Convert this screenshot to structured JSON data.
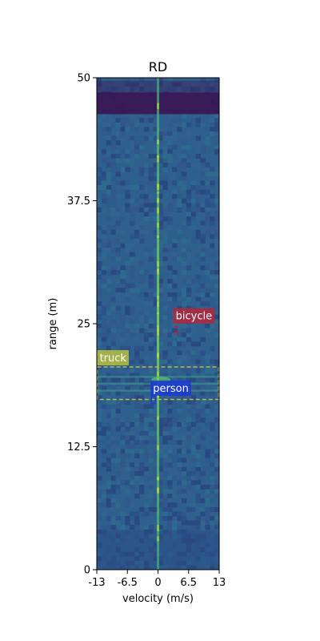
{
  "chart_data": {
    "type": "heatmap",
    "title": "RD",
    "xlabel": "velocity (m/s)",
    "ylabel": "range (m)",
    "xlim": [
      -13,
      13
    ],
    "ylim": [
      0,
      50
    ],
    "xticks": [
      -13,
      -6.5,
      0,
      6.5,
      13
    ],
    "xtick_labels": [
      "-13",
      "-6.5",
      "0",
      "6.5",
      "13"
    ],
    "yticks": [
      0,
      12.5,
      25,
      37.5,
      50
    ],
    "ytick_labels": [
      "0",
      "12.5",
      "25",
      "37.5",
      "50"
    ],
    "colormap": "viridis",
    "features": [
      {
        "kind": "zero-doppler-line",
        "velocity": 0,
        "color": "#4fc46a"
      },
      {
        "kind": "dark-band",
        "range_from": 46.3,
        "range_to": 48.5,
        "color": "#3a1452"
      }
    ],
    "detections": [
      {
        "label": "truck",
        "color": "#b5bd42",
        "box": {
          "v_min": -12.9,
          "v_max": 12.9,
          "r_min": 17.3,
          "r_max": 20.6
        },
        "box_style": "dashed"
      },
      {
        "label": "person",
        "color": "#1b3ad6",
        "box": {
          "v_min": -1.4,
          "v_max": -0.6,
          "r_min": 16.9,
          "r_max": 17.6
        },
        "box_style": "solid"
      },
      {
        "label": "bicycle",
        "color": "#b0283e",
        "box": {
          "v_min": 3.6,
          "v_max": 4.2,
          "r_min": 23.9,
          "r_max": 24.7
        },
        "box_style": "dashed"
      }
    ]
  }
}
